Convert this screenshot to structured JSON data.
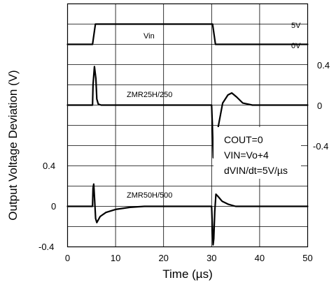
{
  "chart_data": {
    "type": "line",
    "title": "",
    "xlabel": "Time (µs)",
    "ylabel": "Output Voltage Deviation (V)",
    "xlim": [
      0,
      50
    ],
    "x_ticks": [
      "0",
      "10",
      "20",
      "30",
      "40",
      "50"
    ],
    "grid": true,
    "panels": [
      {
        "name": "Vin",
        "right_tick_labels": [
          "5V",
          "0V"
        ],
        "points": [
          [
            0,
            0
          ],
          [
            5.2,
            0
          ],
          [
            5.8,
            5
          ],
          [
            30.2,
            5
          ],
          [
            30.8,
            0
          ],
          [
            50,
            0
          ]
        ]
      },
      {
        "name": "ZMR25H/250",
        "right_tick_labels": [
          "0.4",
          "0",
          "-0.4"
        ],
        "ylim": [
          -0.4,
          0.4
        ],
        "points": [
          [
            0,
            0
          ],
          [
            5.2,
            0
          ],
          [
            5.3,
            0.2
          ],
          [
            5.6,
            0.38
          ],
          [
            5.9,
            0.26
          ],
          [
            6.1,
            0.06
          ],
          [
            6.4,
            0.01
          ],
          [
            7,
            0
          ],
          [
            30,
            0
          ],
          [
            30.15,
            -0.18
          ],
          [
            30.35,
            -0.52
          ],
          [
            30.55,
            -0.4
          ],
          [
            31.2,
            -0.26
          ],
          [
            32.3,
            0.02
          ],
          [
            33.4,
            0.1
          ],
          [
            34.2,
            0.12
          ],
          [
            35.2,
            0.08
          ],
          [
            36.5,
            0.02
          ],
          [
            38.5,
            0
          ],
          [
            50,
            0
          ]
        ]
      },
      {
        "name": "ZMR50H/500",
        "left_tick_labels": [
          "0.4",
          "0",
          "-0.4"
        ],
        "ylim": [
          -0.4,
          0.4
        ],
        "points": [
          [
            0,
            0
          ],
          [
            5.2,
            0
          ],
          [
            5.3,
            0.18
          ],
          [
            5.45,
            0.22
          ],
          [
            5.65,
            0.05
          ],
          [
            5.85,
            -0.12
          ],
          [
            6.1,
            -0.16
          ],
          [
            6.8,
            -0.1
          ],
          [
            8,
            -0.06
          ],
          [
            10,
            -0.03
          ],
          [
            13,
            -0.01
          ],
          [
            16,
            0
          ],
          [
            30,
            0
          ],
          [
            30.15,
            -0.18
          ],
          [
            30.3,
            -0.38
          ],
          [
            30.45,
            -0.32
          ],
          [
            30.65,
            -0.05
          ],
          [
            30.9,
            0.12
          ],
          [
            31.3,
            0.1
          ],
          [
            32.2,
            0.05
          ],
          [
            33.5,
            0.02
          ],
          [
            35,
            0
          ],
          [
            50,
            0
          ]
        ]
      }
    ],
    "conditions": [
      "COUT=0",
      "VIN=Vo+4",
      "dVIN/dt=5V/µs"
    ]
  }
}
